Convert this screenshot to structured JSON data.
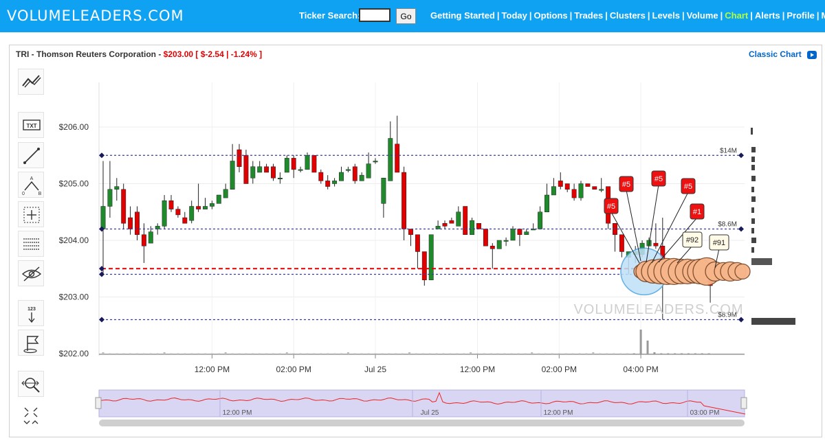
{
  "site": {
    "logo": "VOLUMELEADERS.COM",
    "ticker_label": "Ticker Search:",
    "ticker_value": "",
    "go_label": "Go",
    "nav": [
      {
        "label": "Getting Started",
        "active": false
      },
      {
        "label": "Today",
        "active": false
      },
      {
        "label": "Options",
        "active": false
      },
      {
        "label": "Trades",
        "active": false
      },
      {
        "label": "Clusters",
        "active": false
      },
      {
        "label": "Levels",
        "active": false
      },
      {
        "label": "Volume",
        "active": false
      },
      {
        "label": "Chart",
        "active": true
      },
      {
        "label": "Alerts",
        "active": false
      },
      {
        "label": "Profile",
        "active": false
      },
      {
        "label": "My Subs",
        "active": false
      }
    ],
    "colors": {
      "bar": "#0fa2f2",
      "active_nav": "#b3ff3c",
      "price_red": "#e00000",
      "up": "#1f8a2b",
      "down": "#e00000"
    }
  },
  "header": {
    "name": "TRI - Thomson Reuters Corporation - ",
    "price": "$203.00",
    "change": "[ $-2.54 | -1.24% ]",
    "classic_label": "Classic Chart"
  },
  "tools": [
    "trend-line-icon",
    "text-tool-icon",
    "line-tool-icon",
    "abc-pattern-icon",
    "crosshair-icon",
    "fib-levels-icon",
    "hide-icon",
    "numbering-icon",
    "flag-icon",
    "zoom-icon",
    "fit-icon"
  ],
  "tool_labels": {
    "text": "TXT",
    "numbering": "123",
    "abc_a": "A",
    "abc_o": "0",
    "abc_b": "B"
  },
  "chart_data": {
    "type": "candlestick",
    "ylim": [
      201.9,
      206.5
    ],
    "yticks": [
      206,
      205,
      204,
      203,
      202
    ],
    "ytick_labels": [
      "$206.00",
      "$205.00",
      "$204.00",
      "$203.00",
      "$202.00"
    ],
    "xtick_labels": [
      "12:00 PM",
      "02:00 PM",
      "Jul 25",
      "12:00 PM",
      "02:00 PM",
      "04:00 PM"
    ],
    "xtick_index": [
      16,
      28,
      40,
      55,
      67,
      79
    ],
    "candles_day1": [
      [
        204.2,
        204.6,
        203.4,
        205.4
      ],
      [
        204.6,
        204.9,
        204.4,
        205.4
      ],
      [
        204.9,
        204.95,
        204.7,
        205.1
      ],
      [
        204.9,
        204.3,
        204.2,
        205.0
      ],
      [
        204.4,
        204.2,
        204.1,
        204.6
      ],
      [
        204.5,
        204.1,
        204.0,
        204.6
      ],
      [
        204.1,
        203.9,
        203.6,
        204.3
      ],
      [
        203.95,
        204.15,
        203.95,
        204.25
      ],
      [
        204.2,
        204.25,
        204.1,
        204.3
      ],
      [
        204.25,
        204.7,
        204.2,
        204.8
      ],
      [
        204.7,
        204.55,
        204.5,
        204.8
      ],
      [
        204.55,
        204.45,
        204.4,
        204.6
      ],
      [
        204.4,
        204.3,
        204.3,
        204.5
      ],
      [
        204.35,
        204.6,
        204.3,
        204.7
      ],
      [
        204.6,
        204.55,
        204.5,
        205.0
      ],
      [
        204.55,
        204.6,
        204.55,
        204.75
      ],
      [
        204.6,
        204.65,
        204.55,
        204.7
      ],
      [
        204.65,
        204.8,
        204.7,
        204.8
      ],
      [
        204.75,
        204.9,
        204.75,
        205.0
      ],
      [
        204.9,
        205.4,
        204.9,
        205.7
      ],
      [
        205.6,
        205.3,
        205.2,
        205.7
      ],
      [
        205.5,
        205.0,
        205.0,
        205.6
      ],
      [
        205.1,
        205.3,
        205.0,
        205.4
      ],
      [
        205.2,
        205.3,
        205.2,
        205.4
      ],
      [
        205.3,
        205.2,
        205.2,
        205.35
      ],
      [
        205.3,
        205.1,
        205.05,
        205.35
      ],
      [
        205.1,
        205.1,
        205.0,
        205.2
      ],
      [
        205.2,
        205.45,
        205.2,
        205.5
      ],
      [
        205.45,
        205.25,
        205.1,
        205.5
      ],
      [
        205.25,
        205.25,
        205.2,
        205.3
      ],
      [
        205.25,
        205.5,
        205.4,
        205.55
      ],
      [
        205.5,
        205.2,
        205.2,
        205.5
      ],
      [
        205.2,
        205.05,
        205.0,
        205.25
      ],
      [
        205.05,
        204.95,
        204.9,
        205.15
      ],
      [
        205.0,
        205.05,
        204.95,
        205.1
      ],
      [
        205.05,
        205.2,
        205.05,
        205.3
      ],
      [
        205.25,
        205.25,
        205.2,
        205.3
      ],
      [
        205.3,
        205.05,
        205.0,
        205.35
      ],
      [
        205.05,
        205.15,
        205.05,
        205.2
      ],
      [
        205.1,
        205.35,
        205.1,
        205.55
      ],
      [
        205.4,
        205.4,
        205.35,
        205.45
      ]
    ],
    "candles_day2": [
      [
        204.65,
        205.1,
        204.4,
        205.1
      ],
      [
        205.05,
        205.8,
        205.1,
        206.1
      ],
      [
        205.7,
        205.2,
        205.2,
        206.2
      ],
      [
        205.2,
        204.2,
        204.0,
        205.3
      ],
      [
        204.2,
        204.1,
        203.9,
        204.2
      ],
      [
        204.1,
        203.8,
        203.5,
        204.1
      ],
      [
        203.8,
        203.3,
        203.2,
        203.8
      ],
      [
        203.3,
        204.1,
        203.3,
        204.1
      ],
      [
        204.2,
        204.25,
        204.2,
        204.35
      ],
      [
        204.3,
        204.25,
        204.2,
        204.35
      ],
      [
        204.35,
        204.3,
        204.3,
        204.4
      ],
      [
        204.25,
        204.5,
        204.3,
        204.6
      ],
      [
        204.6,
        204.1,
        204.1,
        204.6
      ],
      [
        204.1,
        204.35,
        204.1,
        204.4
      ],
      [
        204.3,
        204.2,
        204.2,
        204.3
      ],
      [
        204.2,
        203.9,
        203.9,
        204.2
      ],
      [
        203.9,
        203.85,
        203.5,
        203.95
      ],
      [
        203.85,
        204.0,
        203.85,
        204.0
      ],
      [
        204.0,
        204.0,
        203.9,
        204.05
      ],
      [
        204.0,
        204.2,
        204.0,
        204.25
      ],
      [
        204.2,
        204.1,
        203.9,
        204.2
      ],
      [
        204.1,
        204.15,
        204.1,
        204.2
      ],
      [
        204.2,
        204.2,
        204.2,
        204.3
      ],
      [
        204.2,
        204.5,
        204.2,
        204.6
      ],
      [
        204.5,
        204.8,
        204.5,
        205.0
      ],
      [
        204.8,
        204.95,
        204.8,
        205.1
      ],
      [
        205.05,
        204.95,
        204.9,
        205.2
      ],
      [
        205.0,
        204.9,
        204.85,
        205.0
      ],
      [
        204.9,
        204.75,
        204.7,
        205.0
      ],
      [
        204.75,
        205.0,
        204.7,
        205.05
      ],
      [
        205.0,
        204.95,
        204.95,
        205.0
      ],
      [
        204.95,
        204.9,
        204.9,
        204.95
      ],
      [
        204.9,
        204.9,
        204.85,
        205.1
      ],
      [
        204.95,
        204.3,
        204.2,
        204.95
      ],
      [
        204.3,
        204.1,
        203.8,
        204.3
      ],
      [
        204.1,
        203.8,
        203.7,
        204.0
      ],
      [
        203.7,
        203.8,
        203.4,
        203.8
      ],
      [
        203.75,
        203.8,
        203.6,
        203.9
      ],
      [
        203.75,
        203.95,
        203.7,
        204.0
      ],
      [
        203.9,
        204.0,
        203.9,
        204.05
      ],
      [
        203.95,
        203.9,
        203.85,
        204.3
      ],
      [
        203.9,
        203.5,
        202.6,
        204.4
      ],
      [
        203.5,
        203.5,
        203.45,
        203.55
      ],
      [
        203.5,
        203.4,
        203.35,
        203.55
      ],
      [
        203.45,
        203.4,
        203.35,
        203.5
      ],
      [
        203.4,
        203.35,
        203.3,
        203.45
      ],
      [
        203.35,
        203.3,
        203.3,
        203.4
      ],
      [
        203.3,
        203.3,
        203.25,
        203.35
      ],
      [
        203.3,
        203.2,
        202.9,
        203.3
      ]
    ],
    "levels": [
      {
        "price": 205.5,
        "label": "$14M",
        "color": "#3a3a9a",
        "style": "dotted"
      },
      {
        "price": 204.2,
        "label": "$8.6M",
        "color": "#3a3a9a",
        "style": "dotted"
      },
      {
        "price": 203.5,
        "label": "",
        "color": "#e00000",
        "style": "dashed"
      },
      {
        "price": 203.4,
        "label": "",
        "color": "#3a3a9a",
        "style": "dotted"
      },
      {
        "price": 202.6,
        "label": "$8.9M",
        "color": "#3a3a9a",
        "style": "dotted"
      }
    ],
    "trade_ranks": [
      {
        "label": "#5",
        "style": "red"
      },
      {
        "label": "#5",
        "style": "red"
      },
      {
        "label": "#5",
        "style": "red"
      },
      {
        "label": "#5",
        "style": "red"
      },
      {
        "label": "#1",
        "style": "red"
      },
      {
        "label": "#92",
        "style": "white"
      },
      {
        "label": "#91",
        "style": "white"
      }
    ],
    "watermark": "VOLUMELEADERS.COM",
    "navigator": {
      "labels": [
        "12:00 PM",
        "Jul 25",
        "12:00 PM",
        "03:00 PM"
      ]
    }
  }
}
